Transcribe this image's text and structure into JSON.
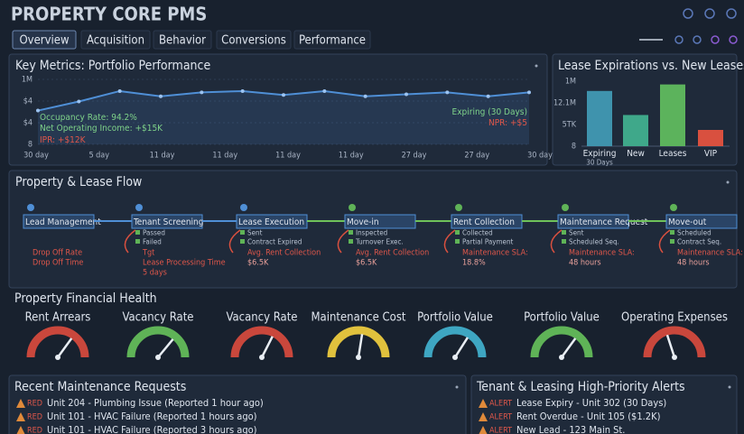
{
  "header": {
    "title": "PROPERTY CORE PMS"
  },
  "tabs": [
    "Overview",
    "Acquisition",
    "Behavior",
    "Conversions",
    "Performance"
  ],
  "key_metrics": {
    "title": "Key Metrics: Portfolio Performance",
    "y_labels": [
      "1M",
      "$4",
      "$4",
      "8"
    ],
    "x_labels": [
      "30 day",
      "5 day",
      "11 day",
      "11 day",
      "11 day",
      "11 day",
      "27 day",
      "27 day",
      "30 day"
    ],
    "values": [
      52,
      66,
      82,
      74,
      80,
      82,
      76,
      82,
      74,
      77,
      80,
      74,
      80
    ],
    "ylim": [
      0,
      100
    ],
    "color": "#4f8fd6",
    "annotations": [
      {
        "text": "Occupancy Rate: 94.2%",
        "color": "#7fd38a"
      },
      {
        "text": "Net Operating Income: +$15K",
        "color": "#7fd38a"
      },
      {
        "text": "IPR: +$12K",
        "color": "#e0574a"
      },
      {
        "text": "Expiring (30 Days)",
        "color": "#7fd38a"
      },
      {
        "text": "NPR: +$5",
        "color": "#e0574a"
      }
    ]
  },
  "lease_chart": {
    "title": "Lease Expirations vs. New Leases",
    "y_labels": [
      "1M",
      "12.1M",
      "5TK",
      "8"
    ],
    "categories": [
      "Expiring",
      "New",
      "Leases",
      "VIP"
    ],
    "note": "30 Days",
    "values": [
      85,
      48,
      95,
      25
    ],
    "ylim": [
      0,
      100
    ],
    "colors": [
      "#3f93ad",
      "#3fa88a",
      "#5cb35c",
      "#d9503f"
    ]
  },
  "flow": {
    "title": "Property & Lease Flow",
    "nodes": [
      {
        "label": "Lead Management",
        "items": [],
        "notes": [
          "Drop Off Rate",
          "Drop Off Time"
        ]
      },
      {
        "label": "Tenant Screening",
        "items": [
          "Passed",
          "Failed"
        ],
        "notes": [
          "Tgt",
          "Lease Processing Time",
          "5 days"
        ]
      },
      {
        "label": "Lease Execution",
        "items": [
          "Sent",
          "Contract Expired"
        ],
        "notes": [
          "Avg. Rent Collection",
          "$6.5K"
        ]
      },
      {
        "label": "Move-in",
        "items": [
          "Inspected",
          "Turnover Exec."
        ],
        "notes": [
          "Avg. Rent Collection",
          "$6.5K"
        ]
      },
      {
        "label": "Rent Collection",
        "items": [
          "Collected",
          "Partial Payment"
        ],
        "notes": [
          "Maintenance SLA:",
          "18.8%"
        ]
      },
      {
        "label": "Maintenance Request",
        "items": [
          "Sent",
          "Scheduled Seq."
        ],
        "notes": [
          "Maintenance SLA:",
          "48 hours"
        ]
      },
      {
        "label": "Move-out",
        "items": [
          "Scheduled",
          "Contract Seq."
        ],
        "notes": [
          "Maintenance SLA:",
          "48 hours"
        ]
      }
    ]
  },
  "health": {
    "title": "Property Financial Health",
    "gauges": [
      {
        "label": "Rent Arrears",
        "value": 70,
        "color": "#c9473c"
      },
      {
        "label": "Vacancy Rate",
        "value": 72,
        "color": "#5fb357"
      },
      {
        "label": "Vacancy Rate",
        "value": 65,
        "color": "#c9473c"
      },
      {
        "label": "Maintenance Cost",
        "value": 55,
        "color": "#e0c13d"
      },
      {
        "label": "Portfolio Value",
        "value": 68,
        "color": "#3ea6c2"
      },
      {
        "label": "Portfolio Value",
        "value": 70,
        "color": "#5fb357"
      },
      {
        "label": "Operating Expenses",
        "value": 40,
        "color": "#c9473c"
      }
    ]
  },
  "maintenance": {
    "title": "Recent Maintenance Requests",
    "items": [
      {
        "tag": "RED",
        "text": "Unit 204 - Plumbing Issue (Reported 1 hour ago)"
      },
      {
        "tag": "RED",
        "text": "Unit 101 - HVAC Failure (Reported 1 hours ago)"
      },
      {
        "tag": "RED",
        "text": "Unit 101 - HVAC Failure (Reported 3 hours ago)"
      }
    ]
  },
  "alerts": {
    "title": "Tenant & Leasing High-Priority Alerts",
    "items": [
      {
        "tag": "ALERT",
        "text": "Lease Expiry - Unit 302 (30 Days)"
      },
      {
        "tag": "ALERT",
        "text": "Rent Overdue - Unit 105 ($1.2K)"
      },
      {
        "tag": "ALERT",
        "text": "New Lead - 123 Main St."
      }
    ]
  }
}
